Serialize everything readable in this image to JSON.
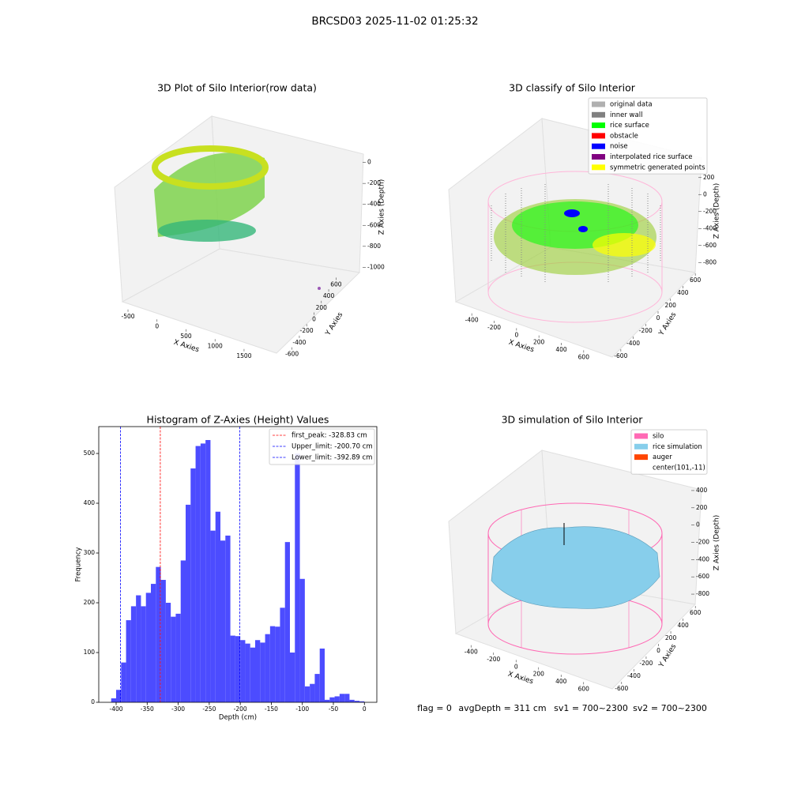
{
  "title": "BRCSD03 2025-11-02 01:25:32",
  "footer": [
    "flag = 0",
    "avgDepth = 311 cm",
    "sv1 = 700~2300",
    "sv2 = 700~2300"
  ],
  "chart_data": [
    {
      "type": "scatter3d",
      "title": "3D Plot of Silo Interior(row data)",
      "xlabel": "X Axies",
      "ylabel": "Y Axies",
      "zlabel": "Z Axies (Depth)",
      "xlim": [
        -650,
        1950
      ],
      "ylim": [
        -700,
        700
      ],
      "zlim": [
        -1050,
        80
      ],
      "xticks": [
        -500,
        0,
        500,
        1000,
        1500
      ],
      "yticks": [
        -600,
        -400,
        -200,
        0,
        200,
        400,
        600
      ],
      "zticks": [
        -1000,
        -800,
        -600,
        -400,
        -200,
        0
      ]
    },
    {
      "type": "scatter3d",
      "title": "3D classify of Silo Interior",
      "xlabel": "X Axies",
      "ylabel": "Y Axies",
      "zlabel": "Z Axies (Depth)",
      "xlim": [
        -500,
        700
      ],
      "ylim": [
        -700,
        700
      ],
      "zlim": [
        -900,
        300
      ],
      "xticks": [
        -400,
        -200,
        0,
        200,
        400,
        600
      ],
      "yticks": [
        -600,
        -400,
        -200,
        0,
        200,
        400,
        600
      ],
      "zticks": [
        -800,
        -600,
        -400,
        -200,
        0,
        200
      ],
      "legend_items": [
        {
          "name": "original data",
          "color": "#b0b0b0"
        },
        {
          "name": "inner wall",
          "color": "#808080"
        },
        {
          "name": "rice surface",
          "color": "#00ff00"
        },
        {
          "name": "obstacle",
          "color": "#ff0000"
        },
        {
          "name": "noise",
          "color": "#0000ff"
        },
        {
          "name": "interpolated rice surface",
          "color": "#800080"
        },
        {
          "name": "symmetric generated points",
          "color": "#ffff00"
        }
      ]
    },
    {
      "type": "histogram",
      "title": "Histogram of Z-Axies (Height) Values",
      "xlabel": "Depth (cm)",
      "ylabel": "Frequency",
      "color": "#4c4cff",
      "xlim": [
        -428,
        20
      ],
      "ylim": [
        0,
        554
      ],
      "xticks": [
        -400,
        -350,
        -300,
        -250,
        -200,
        -150,
        -100,
        -50,
        0
      ],
      "yticks": [
        0,
        100,
        200,
        300,
        400,
        500
      ],
      "bins": [
        -408,
        -400,
        -392,
        -384,
        -376,
        -368,
        -360,
        -352,
        -344,
        -336,
        -328,
        -320,
        -312,
        -304,
        -296,
        -288,
        -280,
        -272,
        -264,
        -256,
        -248,
        -240,
        -232,
        -224,
        -216,
        -208,
        -200,
        -192,
        -184,
        -176,
        -168,
        -160,
        -152,
        -144,
        -136,
        -128,
        -120,
        -112,
        -104,
        -96,
        -88,
        -80,
        -72,
        -64,
        -56,
        -48,
        -40,
        -32,
        -24,
        -16,
        -8,
        0
      ],
      "values": [
        8,
        25,
        80,
        165,
        193,
        215,
        193,
        220,
        238,
        272,
        246,
        200,
        172,
        178,
        285,
        397,
        470,
        515,
        520,
        527,
        345,
        383,
        325,
        335,
        134,
        133,
        125,
        118,
        110,
        125,
        120,
        137,
        153,
        152,
        190,
        322,
        100,
        500,
        248,
        32,
        37,
        57,
        108,
        5,
        10,
        12,
        17,
        17,
        5,
        3,
        2
      ],
      "lines": [
        {
          "name": "first_peak: -328.83 cm",
          "value": -328.83,
          "color": "#ff0000"
        },
        {
          "name": "Upper_limit: -200.70 cm",
          "value": -200.7,
          "color": "#0000ff"
        },
        {
          "name": "Lower_limit: -392.89 cm",
          "value": -392.89,
          "color": "#0000ff"
        }
      ]
    },
    {
      "type": "surface3d",
      "title": "3D simulation of Silo Interior",
      "xlabel": "X Axies",
      "ylabel": "Y Axies",
      "zlabel": "Z Axies (Depth)",
      "xlim": [
        -500,
        700
      ],
      "ylim": [
        -700,
        700
      ],
      "zlim": [
        -900,
        500
      ],
      "xticks": [
        -400,
        -200,
        0,
        200,
        400,
        600
      ],
      "yticks": [
        -600,
        -400,
        -200,
        0,
        200,
        400,
        600
      ],
      "zticks": [
        -800,
        -600,
        -400,
        -200,
        0,
        200,
        400
      ],
      "legend_items": [
        {
          "name": "silo",
          "color": "#ff69b4"
        },
        {
          "name": "rice simulation",
          "color": "#87ceeb"
        },
        {
          "name": "auger",
          "color": "#ff4500"
        },
        {
          "name": "center(101,-11)",
          "color": "#ffffff"
        }
      ]
    }
  ]
}
